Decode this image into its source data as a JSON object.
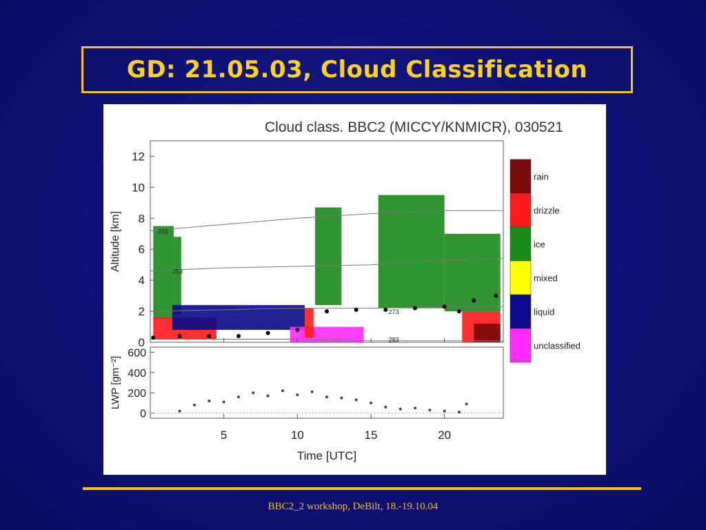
{
  "slide": {
    "title": "GD: 21.05.03, Cloud Classification",
    "footer": "BBC2_2 workshop, DeBilt, 18.-19.10.04",
    "colors": {
      "accent": "#f5c211",
      "background": "#10137a",
      "title_text": "#ffd21a"
    }
  },
  "chart_data": [
    {
      "type": "heatmap",
      "title": "Cloud class. BBC2 (MICCY/KNMICR), 030521",
      "xlabel": "",
      "ylabel": "Altitude [km]",
      "xlim": [
        0,
        24
      ],
      "ylim": [
        0,
        13
      ],
      "yticks": [
        0,
        2,
        4,
        6,
        8,
        10,
        12
      ],
      "legend": {
        "placement": "right",
        "classes": [
          {
            "label": "rain",
            "color": "#7a0a0a"
          },
          {
            "label": "drizzle",
            "color": "#ff1a1a"
          },
          {
            "label": "ice",
            "color": "#1a8a1a"
          },
          {
            "label": "mixed",
            "color": "#ffff00"
          },
          {
            "label": "liquid",
            "color": "#0a0a8a"
          },
          {
            "label": "unclassified",
            "color": "#ff2aff"
          }
        ]
      },
      "isotherm_labels": [
        "233",
        "253",
        "273",
        "283"
      ],
      "isotherms": [
        {
          "label": "233",
          "x": [
            0,
            5,
            10,
            15,
            20,
            24
          ],
          "y": [
            7.2,
            7.6,
            8.0,
            8.3,
            8.5,
            8.5
          ]
        },
        {
          "label": "253",
          "x": [
            0,
            5,
            10,
            15,
            20,
            24
          ],
          "y": [
            4.6,
            4.8,
            4.9,
            5.0,
            5.3,
            5.4
          ]
        },
        {
          "label": "273",
          "x": [
            0,
            5,
            10,
            15,
            20,
            24
          ],
          "y": [
            2.0,
            2.1,
            2.2,
            2.2,
            2.3,
            2.3
          ]
        },
        {
          "label": "283",
          "x": [
            0,
            5,
            10,
            15,
            20,
            24
          ],
          "y": [
            0.2,
            0.2,
            0.2,
            0.1,
            0.1,
            0.1
          ]
        }
      ],
      "regions": [
        {
          "class": "ice",
          "x": [
            0.2,
            1.6
          ],
          "y": [
            1.5,
            7.5
          ]
        },
        {
          "class": "ice",
          "x": [
            1.6,
            2.1
          ],
          "y": [
            1.8,
            6.8
          ]
        },
        {
          "class": "drizzle",
          "x": [
            0.2,
            4.5
          ],
          "y": [
            0.2,
            1.6
          ]
        },
        {
          "class": "liquid",
          "x": [
            1.5,
            10.5
          ],
          "y": [
            0.8,
            2.4
          ]
        },
        {
          "class": "unclassified",
          "x": [
            9.5,
            14.5
          ],
          "y": [
            0,
            1.0
          ]
        },
        {
          "class": "drizzle",
          "x": [
            10.5,
            11.1
          ],
          "y": [
            0.3,
            2.2
          ]
        },
        {
          "class": "ice",
          "x": [
            15.5,
            20.0
          ],
          "y": [
            2.2,
            9.5
          ]
        },
        {
          "class": "ice",
          "x": [
            20.0,
            23.8
          ],
          "y": [
            2.0,
            7.0
          ]
        },
        {
          "class": "ice",
          "x": [
            11.2,
            13.0
          ],
          "y": [
            2.4,
            8.7
          ]
        },
        {
          "class": "drizzle",
          "x": [
            21.2,
            23.8
          ],
          "y": [
            0,
            2.0
          ]
        },
        {
          "class": "rain",
          "x": [
            22.0,
            23.8
          ],
          "y": [
            0,
            1.2
          ]
        }
      ],
      "cloud_base": {
        "x": [
          0.2,
          2,
          4,
          6,
          8,
          10,
          12,
          14,
          16,
          18,
          20,
          21,
          22,
          23.5
        ],
        "y": [
          0.3,
          0.4,
          0.4,
          0.4,
          0.6,
          0.8,
          2.0,
          2.1,
          2.1,
          2.2,
          2.3,
          2.0,
          2.7,
          3.0
        ]
      }
    },
    {
      "type": "scatter",
      "xlabel": "Time [UTC]",
      "ylabel": "LWP [gm⁻²]",
      "xlim": [
        0,
        24
      ],
      "ylim": [
        -50,
        650
      ],
      "xticks": [
        5,
        10,
        15,
        20
      ],
      "yticks": [
        0,
        200,
        400,
        600
      ],
      "series": [
        {
          "x": [
            2.0,
            3,
            4,
            5,
            6,
            7,
            8,
            9,
            10,
            11,
            12,
            13,
            14,
            15,
            16,
            17,
            18,
            19,
            20,
            21,
            21.5
          ],
          "y": [
            20,
            80,
            120,
            110,
            160,
            200,
            170,
            220,
            180,
            210,
            160,
            150,
            130,
            100,
            60,
            40,
            50,
            30,
            20,
            10,
            90
          ]
        }
      ]
    }
  ]
}
